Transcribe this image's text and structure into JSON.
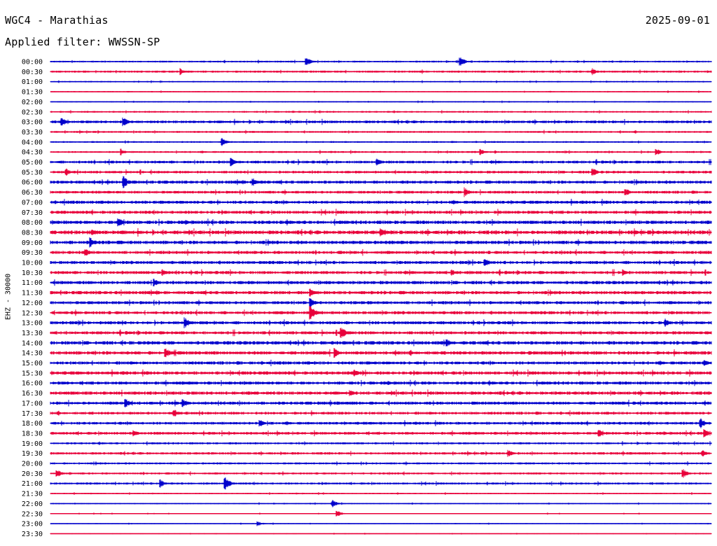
{
  "header": {
    "station": "WGC4 - Marathias",
    "date": "2025-09-01",
    "filter": "Applied filter: WWSSN-SP"
  },
  "channel_label": "EHZ - 30000",
  "colors": {
    "even_rows": "#0000cc",
    "odd_rows": "#e8003a"
  },
  "chart_data": {
    "type": "line",
    "title": "WGC4 - Marathias",
    "ylabel": "EHZ - 30000",
    "x_range_minutes": [
      0,
      30
    ],
    "rows": [
      "00:00",
      "00:30",
      "01:00",
      "01:30",
      "02:00",
      "02:30",
      "03:00",
      "03:30",
      "04:00",
      "04:30",
      "05:00",
      "05:30",
      "06:00",
      "06:30",
      "07:00",
      "07:30",
      "08:00",
      "08:30",
      "09:00",
      "09:30",
      "10:00",
      "10:30",
      "11:00",
      "11:30",
      "12:00",
      "12:30",
      "13:00",
      "13:30",
      "14:00",
      "14:30",
      "15:00",
      "15:30",
      "16:00",
      "16:30",
      "17:00",
      "17:30",
      "18:00",
      "18:30",
      "19:00",
      "19:30",
      "20:00",
      "20:30",
      "21:00",
      "21:30",
      "22:00",
      "22:30",
      "23:00",
      "23:30"
    ],
    "noise_level": [
      1.0,
      1.2,
      0.8,
      0.7,
      0.7,
      1.0,
      1.6,
      1.1,
      1.0,
      1.1,
      1.6,
      1.5,
      1.8,
      1.6,
      1.8,
      1.8,
      2.0,
      2.2,
      2.0,
      1.8,
      1.8,
      1.8,
      1.9,
      1.9,
      1.8,
      1.8,
      1.8,
      1.8,
      2.0,
      2.0,
      1.8,
      1.9,
      1.8,
      1.9,
      1.8,
      1.6,
      1.6,
      1.6,
      1.2,
      1.4,
      1.2,
      1.2,
      1.2,
      0.8,
      0.7,
      0.6,
      0.6,
      0.5
    ],
    "events": [
      {
        "row": "00:00",
        "t": 11.6,
        "amp": 7
      },
      {
        "row": "00:00",
        "t": 18.6,
        "amp": 7
      },
      {
        "row": "00:30",
        "t": 5.9,
        "amp": 5
      },
      {
        "row": "00:30",
        "t": 24.6,
        "amp": 5
      },
      {
        "row": "03:00",
        "t": 0.5,
        "amp": 7
      },
      {
        "row": "03:00",
        "t": 3.3,
        "amp": 8
      },
      {
        "row": "04:00",
        "t": 7.8,
        "amp": 6
      },
      {
        "row": "04:30",
        "t": 3.2,
        "amp": 5
      },
      {
        "row": "04:30",
        "t": 19.5,
        "amp": 5
      },
      {
        "row": "04:30",
        "t": 27.5,
        "amp": 5
      },
      {
        "row": "05:00",
        "t": 8.2,
        "amp": 6
      },
      {
        "row": "05:00",
        "t": 14.8,
        "amp": 6
      },
      {
        "row": "05:30",
        "t": 0.7,
        "amp": 6
      },
      {
        "row": "05:30",
        "t": 24.6,
        "amp": 7
      },
      {
        "row": "06:00",
        "t": 3.3,
        "amp": 10
      },
      {
        "row": "06:00",
        "t": 9.2,
        "amp": 7
      },
      {
        "row": "06:30",
        "t": 18.8,
        "amp": 7
      },
      {
        "row": "06:30",
        "t": 26.1,
        "amp": 6
      },
      {
        "row": "08:00",
        "t": 3.1,
        "amp": 7
      },
      {
        "row": "08:30",
        "t": 1.9,
        "amp": 6
      },
      {
        "row": "08:30",
        "t": 15.0,
        "amp": 6
      },
      {
        "row": "09:00",
        "t": 1.8,
        "amp": 8
      },
      {
        "row": "09:30",
        "t": 1.6,
        "amp": 6
      },
      {
        "row": "10:00",
        "t": 19.7,
        "amp": 7
      },
      {
        "row": "10:30",
        "t": 5.1,
        "amp": 5
      },
      {
        "row": "10:30",
        "t": 18.2,
        "amp": 5
      },
      {
        "row": "10:30",
        "t": 26.0,
        "amp": 5
      },
      {
        "row": "11:00",
        "t": 4.7,
        "amp": 6
      },
      {
        "row": "11:30",
        "t": 11.8,
        "amp": 6
      },
      {
        "row": "12:00",
        "t": 11.8,
        "amp": 7
      },
      {
        "row": "12:30",
        "t": 11.8,
        "amp": 11
      },
      {
        "row": "13:00",
        "t": 6.1,
        "amp": 8
      },
      {
        "row": "13:00",
        "t": 27.9,
        "amp": 7
      },
      {
        "row": "13:30",
        "t": 13.2,
        "amp": 9
      },
      {
        "row": "14:00",
        "t": 18.0,
        "amp": 6
      },
      {
        "row": "14:30",
        "t": 5.2,
        "amp": 10
      },
      {
        "row": "14:30",
        "t": 12.9,
        "amp": 7
      },
      {
        "row": "15:00",
        "t": 29.7,
        "amp": 5
      },
      {
        "row": "15:30",
        "t": 13.8,
        "amp": 5
      },
      {
        "row": "16:30",
        "t": 13.6,
        "amp": 5
      },
      {
        "row": "17:00",
        "t": 3.4,
        "amp": 7
      },
      {
        "row": "17:00",
        "t": 6.0,
        "amp": 7
      },
      {
        "row": "17:30",
        "t": 5.6,
        "amp": 6
      },
      {
        "row": "18:00",
        "t": 9.5,
        "amp": 6
      },
      {
        "row": "18:00",
        "t": 29.5,
        "amp": 8
      },
      {
        "row": "18:30",
        "t": 3.8,
        "amp": 5
      },
      {
        "row": "18:30",
        "t": 24.9,
        "amp": 6
      },
      {
        "row": "18:30",
        "t": 29.7,
        "amp": 6
      },
      {
        "row": "19:30",
        "t": 20.8,
        "amp": 5
      },
      {
        "row": "19:30",
        "t": 29.6,
        "amp": 5
      },
      {
        "row": "20:30",
        "t": 0.3,
        "amp": 6
      },
      {
        "row": "20:30",
        "t": 28.7,
        "amp": 7
      },
      {
        "row": "21:00",
        "t": 5.0,
        "amp": 6
      },
      {
        "row": "21:00",
        "t": 7.9,
        "amp": 11
      },
      {
        "row": "22:00",
        "t": 12.8,
        "amp": 6
      },
      {
        "row": "22:30",
        "t": 13.0,
        "amp": 5
      },
      {
        "row": "23:00",
        "t": 9.4,
        "amp": 4
      }
    ]
  }
}
